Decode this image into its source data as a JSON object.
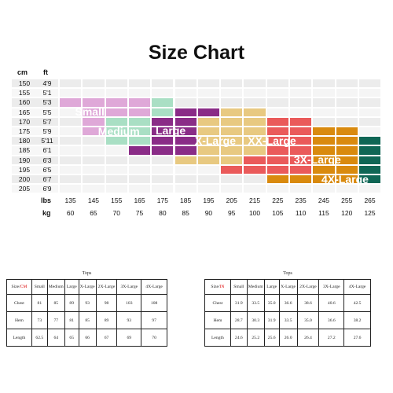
{
  "title": "Size Chart",
  "units": {
    "cm": "cm",
    "ft": "ft",
    "lbs": "lbs",
    "kg": "kg"
  },
  "heights_cm": [
    "150",
    "155",
    "160",
    "165",
    "170",
    "175",
    "180",
    "185",
    "190",
    "195",
    "200",
    "205"
  ],
  "heights_ft": [
    "4'9",
    "5'1",
    "5'3",
    "5'5",
    "5'7",
    "5'9",
    "5'11",
    "6'1",
    "6'3",
    "6'5",
    "6'7",
    "6'9"
  ],
  "weights_lbs": [
    "135",
    "145",
    "155",
    "165",
    "175",
    "185",
    "195",
    "205",
    "215",
    "225",
    "235",
    "245",
    "255",
    "265"
  ],
  "weights_kg": [
    "60",
    "65",
    "70",
    "75",
    "80",
    "85",
    "90",
    "95",
    "100",
    "105",
    "110",
    "115",
    "120",
    "125"
  ],
  "chart_data": {
    "type": "heatmap",
    "title": "Size Chart",
    "xlabel": "lbs / kg",
    "ylabel": "cm / ft",
    "x": [
      "135",
      "145",
      "155",
      "165",
      "175",
      "185",
      "195",
      "205",
      "215",
      "225",
      "235",
      "245",
      "255",
      "265"
    ],
    "y": [
      "150",
      "155",
      "160",
      "165",
      "170",
      "175",
      "180",
      "185",
      "190",
      "195",
      "200",
      "205"
    ],
    "sizes": [
      {
        "name": "Small",
        "color": "#dfa8d8",
        "label": "Small"
      },
      {
        "name": "Medium",
        "color": "#a9dfc4",
        "label": "Medium"
      },
      {
        "name": "Large",
        "color": "#8a2c87",
        "label": "Large"
      },
      {
        "name": "X-Large",
        "color": "#e8c981",
        "label": "X-Large"
      },
      {
        "name": "XX-Large",
        "color": "#ea5a5a",
        "label": "XX-Large"
      },
      {
        "name": "3X-Large",
        "color": "#d98a0e",
        "label": "3X-Large"
      },
      {
        "name": "4X-Large",
        "color": "#0f6655",
        "label": "4X-Large"
      }
    ],
    "grid": [
      [
        0,
        0,
        0,
        0,
        0,
        0,
        0,
        0,
        0,
        0,
        0,
        0,
        0,
        0
      ],
      [
        0,
        0,
        0,
        0,
        0,
        0,
        0,
        0,
        0,
        0,
        0,
        0,
        0,
        0
      ],
      [
        1,
        1,
        1,
        1,
        2,
        0,
        0,
        0,
        0,
        0,
        0,
        0,
        0,
        0
      ],
      [
        0,
        1,
        1,
        1,
        2,
        3,
        3,
        4,
        4,
        0,
        0,
        0,
        0,
        0
      ],
      [
        0,
        1,
        2,
        2,
        3,
        3,
        4,
        4,
        4,
        5,
        5,
        0,
        0,
        0
      ],
      [
        0,
        1,
        2,
        2,
        3,
        3,
        4,
        4,
        4,
        5,
        5,
        6,
        6,
        0
      ],
      [
        0,
        0,
        2,
        2,
        3,
        3,
        4,
        4,
        4,
        5,
        5,
        6,
        6,
        7
      ],
      [
        0,
        0,
        0,
        3,
        3,
        3,
        4,
        4,
        4,
        5,
        5,
        6,
        6,
        7
      ],
      [
        0,
        0,
        0,
        0,
        0,
        4,
        4,
        4,
        5,
        5,
        5,
        6,
        6,
        7
      ],
      [
        0,
        0,
        0,
        0,
        0,
        0,
        0,
        5,
        5,
        5,
        5,
        6,
        6,
        7
      ],
      [
        0,
        0,
        0,
        0,
        0,
        0,
        0,
        0,
        0,
        6,
        6,
        6,
        6,
        7
      ],
      [
        0,
        0,
        0,
        0,
        0,
        0,
        0,
        0,
        0,
        0,
        0,
        0,
        0,
        0
      ]
    ]
  },
  "table_cm": {
    "caption": "Tops",
    "corner_prefix": "Size/",
    "corner_unit": "CM",
    "headers": [
      "Small",
      "Medium",
      "Large",
      "X-Large",
      "2X-Large",
      "3X-Large",
      "4X-Large"
    ],
    "rows": [
      {
        "label": "Chest",
        "values": [
          "81",
          "85",
          "89",
          "93",
          "98",
          "103",
          "108"
        ]
      },
      {
        "label": "Hem",
        "values": [
          "73",
          "77",
          "81",
          "85",
          "89",
          "93",
          "97"
        ]
      },
      {
        "label": "Length",
        "values": [
          "62.5",
          "64",
          "65",
          "66",
          "67",
          "69",
          "70"
        ]
      }
    ]
  },
  "table_in": {
    "caption": "Tops",
    "corner_prefix": "Size/",
    "corner_unit": "IN",
    "headers": [
      "Small",
      "Medium",
      "Large",
      "X-Large",
      "2X-Large",
      "3X-Large",
      "4X-Large"
    ],
    "rows": [
      {
        "label": "Chest",
        "values": [
          "31.9",
          "33.5",
          "35.0",
          "36.6",
          "38.6",
          "40.6",
          "42.5"
        ]
      },
      {
        "label": "Hem",
        "values": [
          "28.7",
          "30.3",
          "31.9",
          "33.5",
          "35.0",
          "36.6",
          "38.2"
        ]
      },
      {
        "label": "Length",
        "values": [
          "24.6",
          "25.2",
          "25.6",
          "26.0",
          "26.4",
          "27.2",
          "27.6"
        ]
      }
    ]
  }
}
